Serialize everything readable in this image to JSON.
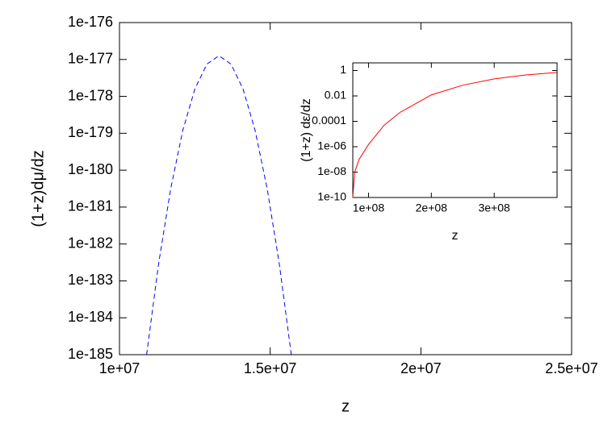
{
  "chart_data": [
    {
      "type": "line",
      "xlabel": "z",
      "ylabel": "(1+z)dμ/dz",
      "ylog": true,
      "xlim": [
        10000000,
        25000000
      ],
      "xticks": [
        {
          "value": 10000000,
          "label": "1e+07"
        },
        {
          "value": 15000000,
          "label": "1.5e+07"
        },
        {
          "value": 20000000,
          "label": "2e+07"
        },
        {
          "value": 25000000,
          "label": "2.5e+07"
        }
      ],
      "ylim": [
        1e-185,
        1e-176
      ],
      "yticks": [
        1e-185,
        1e-184,
        1e-183,
        1e-182,
        1e-181,
        1e-180,
        1e-179,
        1e-178,
        1e-177,
        1e-176
      ],
      "series": [
        {
          "color": "#0000ff",
          "dashed": true,
          "x": [
            10900000,
            11300000,
            11700000,
            12100000,
            12500000,
            12900000,
            13300000,
            13700000,
            14100000,
            14500000,
            14900000,
            15300000,
            15700000
          ],
          "values": [
            1e-185,
            2.99e-183,
            3.16e-181,
            1.19e-179,
            1.58e-178,
            7.5e-178,
            1.26e-177,
            7.5e-178,
            1.58e-178,
            1.19e-179,
            3.16e-181,
            2.99e-183,
            1e-185
          ]
        }
      ]
    },
    {
      "type": "line",
      "xlabel": "z",
      "ylabel": "(1+z) dε/dz",
      "ylog": true,
      "xlim": [
        75000000,
        400000000
      ],
      "xticks": [
        {
          "value": 100000000,
          "label": "1e+08"
        },
        {
          "value": 200000000,
          "label": "2e+08"
        },
        {
          "value": 300000000,
          "label": "3e+08"
        }
      ],
      "ylim": [
        1e-10,
        4
      ],
      "yticks": [
        1e-10,
        {
          "value": 1e-08,
          "label": "1e-08"
        },
        {
          "value": 1e-06,
          "label": "1e-06"
        },
        0.0001,
        0.01,
        1
      ],
      "series": [
        {
          "color": "#ff0000",
          "dashed": false,
          "x": [
            75000000,
            78000000,
            85000000,
            100000000,
            125000000,
            150000000,
            200000000,
            250000000,
            300000000,
            350000000,
            400000000
          ],
          "values": [
            1e-10,
            1e-08,
            1e-07,
            1.5e-06,
            5e-05,
            0.0005,
            0.012,
            0.07,
            0.22,
            0.45,
            0.7
          ]
        }
      ]
    }
  ]
}
